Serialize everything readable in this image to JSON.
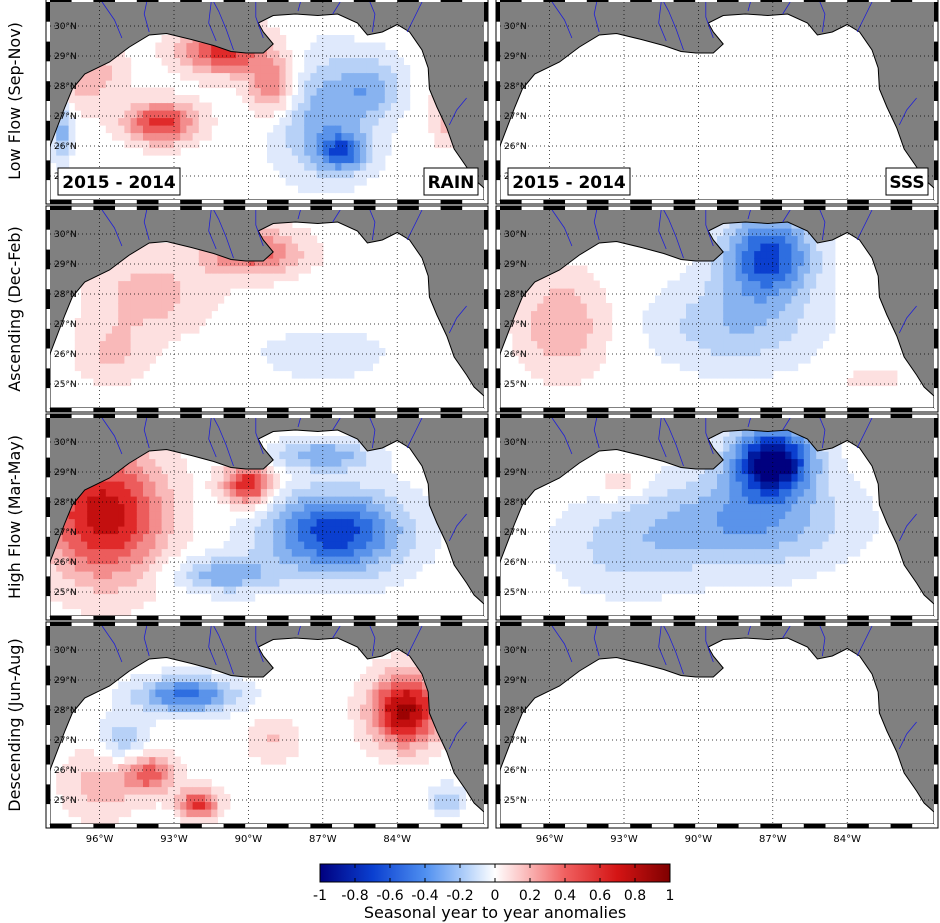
{
  "rows": [
    {
      "label": "Low Flow (Sep-Nov)"
    },
    {
      "label": "Ascending (Dec-Feb)"
    },
    {
      "label": "High Flow (Mar-May)"
    },
    {
      "label": "Descending (Jun-Aug)"
    }
  ],
  "panel_tags": {
    "period": "2015 - 2014",
    "rain": "RAIN",
    "sss": "SSS"
  },
  "lat_ticks": [
    "30°N",
    "29°N",
    "28°N",
    "27°N",
    "26°N",
    "25°N"
  ],
  "lon_ticks": [
    "96°W",
    "93°W",
    "90°W",
    "87°W",
    "84°W"
  ],
  "colorbar": {
    "title": "Seasonal year to year anomalies",
    "min": -1,
    "max": 1,
    "ticks": [
      "-1",
      "-0.8",
      "-0.6",
      "-0.4",
      "-0.2",
      "0",
      "0.2",
      "0.4",
      "0.6",
      "0.8",
      "1"
    ]
  },
  "colors": {
    "land": "#808080",
    "negative_max": "#00007f",
    "positive_max": "#7f0000",
    "neutral": "#ffffff",
    "rivers": "#1f1fd6"
  }
}
